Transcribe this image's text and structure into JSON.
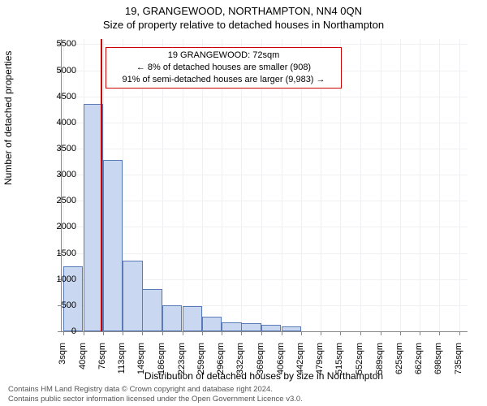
{
  "supertitle": "19, GRANGEWOOD, NORTHAMPTON, NN4 0QN",
  "title": "Size of property relative to detached houses in Northampton",
  "chart": {
    "type": "histogram",
    "background_color": "#ffffff",
    "grid_color": "#eef0f4",
    "axis_color": "#888888",
    "bar_fill": "#c9d8f0",
    "bar_stroke": "#5b7bb8",
    "reference_line_color": "#cc0000",
    "ylabel": "Number of detached properties",
    "xlabel": "Distribution of detached houses by size in Northampton",
    "label_fontsize": 12,
    "tick_fontsize": 11,
    "ylim": [
      0,
      5600
    ],
    "ytick_step": 500,
    "xlim": [
      0,
      750
    ],
    "x_bin_width": 36.6,
    "x_ticks": [
      3,
      40,
      76,
      113,
      149,
      186,
      223,
      259,
      296,
      332,
      369,
      406,
      442,
      479,
      515,
      552,
      589,
      625,
      662,
      698,
      735
    ],
    "x_tick_suffix": "sqm",
    "reference_x": 72,
    "values": [
      1250,
      4350,
      3280,
      1350,
      810,
      500,
      490,
      280,
      170,
      160,
      120,
      100,
      0,
      0,
      0,
      0,
      0,
      0,
      0,
      0,
      0
    ]
  },
  "annotation": {
    "lines": [
      "19 GRANGEWOOD: 72sqm",
      "← 8% of detached houses are smaller (908)",
      "91% of semi-detached houses are larger (9,983) →"
    ],
    "border_color": "#cc0000",
    "fontsize": 11
  },
  "footer": {
    "line1": "Contains HM Land Registry data © Crown copyright and database right 2024.",
    "line2": "Contains public sector information licensed under the Open Government Licence v3.0.",
    "color": "#555555",
    "fontsize": 9.5
  }
}
